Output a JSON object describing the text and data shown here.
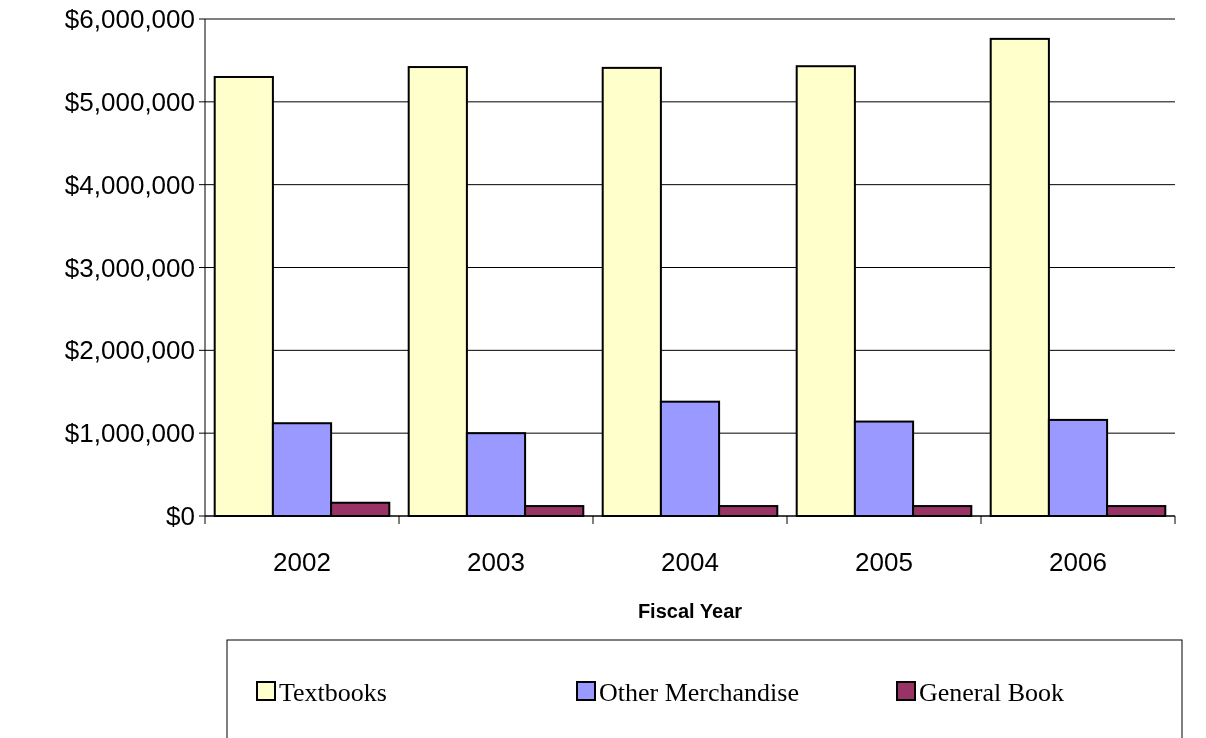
{
  "chart_data": {
    "type": "bar",
    "xlabel": "Fiscal Year",
    "categories": [
      "2002",
      "2003",
      "2004",
      "2005",
      "2006"
    ],
    "series": [
      {
        "name": "Textbooks",
        "color": "#ffffcc",
        "values": [
          5300000,
          5420000,
          5410000,
          5430000,
          5760000
        ]
      },
      {
        "name": "Other Merchandise",
        "color": "#9999ff",
        "values": [
          1120000,
          1000000,
          1380000,
          1140000,
          1160000
        ]
      },
      {
        "name": "General Book",
        "color": "#993366",
        "values": [
          160000,
          120000,
          120000,
          120000,
          120000
        ]
      }
    ],
    "ylim": [
      0,
      6000000
    ],
    "yticks": [
      {
        "value": 0,
        "label": "$0"
      },
      {
        "value": 1000000,
        "label": "$1,000,000"
      },
      {
        "value": 2000000,
        "label": "$2,000,000"
      },
      {
        "value": 3000000,
        "label": "$3,000,000"
      },
      {
        "value": 4000000,
        "label": "$4,000,000"
      },
      {
        "value": 5000000,
        "label": "$5,000,000"
      },
      {
        "value": 6000000,
        "label": "$6,000,000"
      }
    ],
    "grid": "y",
    "legend": "bottom"
  }
}
